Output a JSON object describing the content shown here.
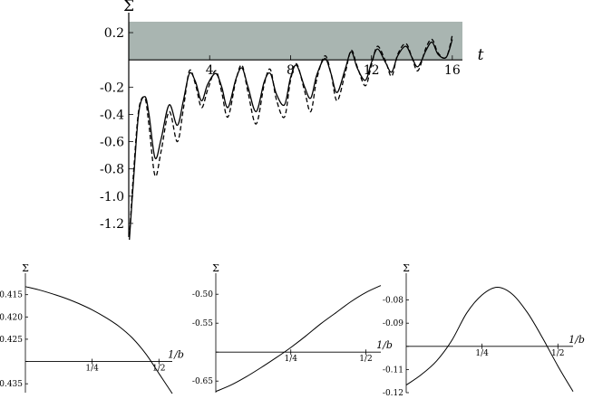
{
  "chart_data": [
    {
      "type": "line",
      "ylabel": "Σ",
      "xlabel": "t",
      "xlim": [
        0,
        16.5
      ],
      "ylim": [
        -1.3,
        0.28
      ],
      "x_ticks": [
        4,
        8,
        12,
        16
      ],
      "x_tick_labels": [
        "4",
        "8",
        "12",
        "16"
      ],
      "y_ticks": [
        0.2,
        -0.2,
        -0.4,
        -0.6,
        -0.8,
        -1.0,
        -1.2
      ],
      "y_tick_labels": [
        "0.2",
        "-0.2",
        "-0.4",
        "-0.6",
        "-0.8",
        "-1.0",
        "-1.2"
      ],
      "shaded_region": {
        "y_from": 0,
        "y_to": 0.28,
        "color": "#a9b5b1"
      },
      "series": [
        {
          "style": "solid",
          "x": [
            0.03,
            0.25,
            0.5,
            0.8,
            1.0,
            1.3,
            1.6,
            2.0,
            2.4,
            2.7,
            3.0,
            3.3,
            3.6,
            3.9,
            4.3,
            4.6,
            4.9,
            5.3,
            5.6,
            5.9,
            6.3,
            6.7,
            7.0,
            7.3,
            7.7,
            8.0,
            8.3,
            8.7,
            9.0,
            9.3,
            9.7,
            10.0,
            10.3,
            10.7,
            11.0,
            11.3,
            11.7,
            12.0,
            12.3,
            12.7,
            13.0,
            13.3,
            13.7,
            14.0,
            14.3,
            14.7,
            15.0,
            15.3,
            15.7,
            16.0
          ],
          "y": [
            -1.32,
            -0.85,
            -0.38,
            -0.27,
            -0.4,
            -0.72,
            -0.58,
            -0.33,
            -0.48,
            -0.3,
            -0.1,
            -0.16,
            -0.3,
            -0.18,
            -0.1,
            -0.2,
            -0.35,
            -0.14,
            -0.06,
            -0.2,
            -0.38,
            -0.16,
            -0.1,
            -0.25,
            -0.33,
            -0.13,
            -0.04,
            -0.2,
            -0.28,
            -0.11,
            0.01,
            -0.1,
            -0.24,
            -0.07,
            0.06,
            -0.06,
            -0.15,
            -0.02,
            0.08,
            -0.02,
            -0.09,
            0.03,
            0.1,
            0.02,
            -0.05,
            0.07,
            0.13,
            0.04,
            0.02,
            0.15
          ]
        },
        {
          "style": "dashed",
          "x": [
            0.03,
            0.25,
            0.5,
            0.8,
            1.0,
            1.3,
            1.6,
            2.0,
            2.4,
            2.7,
            3.0,
            3.3,
            3.6,
            3.9,
            4.3,
            4.6,
            4.9,
            5.3,
            5.6,
            5.9,
            6.3,
            6.7,
            7.0,
            7.3,
            7.7,
            8.0,
            8.3,
            8.7,
            9.0,
            9.3,
            9.7,
            10.0,
            10.3,
            10.7,
            11.0,
            11.3,
            11.7,
            12.0,
            12.3,
            12.7,
            13.0,
            13.3,
            13.7,
            14.0,
            14.3,
            14.7,
            15.0,
            15.3,
            15.7,
            16.0
          ],
          "y": [
            -1.3,
            -0.8,
            -0.36,
            -0.28,
            -0.48,
            -0.85,
            -0.67,
            -0.38,
            -0.6,
            -0.36,
            -0.08,
            -0.18,
            -0.35,
            -0.22,
            -0.08,
            -0.24,
            -0.42,
            -0.15,
            -0.04,
            -0.24,
            -0.47,
            -0.18,
            -0.07,
            -0.29,
            -0.42,
            -0.15,
            -0.03,
            -0.23,
            -0.38,
            -0.14,
            0.03,
            -0.1,
            -0.3,
            -0.1,
            0.07,
            -0.05,
            -0.19,
            -0.04,
            0.1,
            -0.01,
            -0.12,
            0.04,
            0.12,
            0.02,
            -0.08,
            0.09,
            0.15,
            0.05,
            0.02,
            0.18
          ]
        }
      ]
    },
    {
      "type": "line",
      "ylabel": "Σ",
      "xlabel": "1/b",
      "xlim": [
        0,
        0.55
      ],
      "ylim": [
        -0.437,
        -0.411
      ],
      "x_ticks": [
        0.25,
        0.5
      ],
      "x_tick_labels": [
        "1/4",
        "1/2"
      ],
      "y_ticks": [
        -0.415,
        -0.42,
        -0.425,
        -0.43,
        -0.435
      ],
      "y_tick_labels": [
        "-0.415",
        "-0.420",
        "-0.425",
        "",
        "-0.435"
      ],
      "axis_y": -0.43,
      "series": [
        {
          "style": "solid",
          "x": [
            0.0,
            0.05,
            0.1,
            0.15,
            0.2,
            0.25,
            0.3,
            0.35,
            0.4,
            0.45,
            0.5,
            0.55
          ],
          "y": [
            -0.4132,
            -0.4139,
            -0.4148,
            -0.4158,
            -0.417,
            -0.4184,
            -0.4201,
            -0.4221,
            -0.4247,
            -0.4282,
            -0.4327,
            -0.4372
          ]
        }
      ]
    },
    {
      "type": "line",
      "ylabel": "Σ",
      "xlabel": "1/b",
      "xlim": [
        0,
        0.55
      ],
      "ylim": [
        -0.67,
        -0.47
      ],
      "x_ticks": [
        0.25,
        0.5
      ],
      "x_tick_labels": [
        "1/4",
        "1/2"
      ],
      "y_ticks": [
        -0.5,
        -0.55,
        -0.6,
        -0.65
      ],
      "y_tick_labels": [
        "-0.50",
        "-0.55",
        "",
        "-0.65"
      ],
      "axis_y": -0.6,
      "series": [
        {
          "style": "solid",
          "x": [
            0.0,
            0.05,
            0.1,
            0.15,
            0.2,
            0.25,
            0.3,
            0.35,
            0.4,
            0.45,
            0.5,
            0.55
          ],
          "y": [
            -0.668,
            -0.657,
            -0.643,
            -0.627,
            -0.61,
            -0.592,
            -0.572,
            -0.551,
            -0.532,
            -0.513,
            -0.497,
            -0.485
          ]
        }
      ]
    },
    {
      "type": "line",
      "ylabel": "Σ",
      "xlabel": "1/b",
      "xlim": [
        0,
        0.55
      ],
      "ylim": [
        -0.12,
        -0.07
      ],
      "x_ticks": [
        0.25,
        0.5
      ],
      "x_tick_labels": [
        "1/4",
        "1/2"
      ],
      "y_ticks": [
        -0.08,
        -0.09,
        -0.1,
        -0.11,
        -0.12
      ],
      "y_tick_labels": [
        "-0.08",
        "-0.09",
        "",
        "-0.11",
        "-0.12"
      ],
      "axis_y": -0.1,
      "series": [
        {
          "style": "solid",
          "x": [
            0.0,
            0.05,
            0.1,
            0.15,
            0.2,
            0.25,
            0.3,
            0.35,
            0.4,
            0.45,
            0.5,
            0.55
          ],
          "y": [
            -0.1167,
            -0.1122,
            -0.1063,
            -0.0975,
            -0.0855,
            -0.0778,
            -0.0745,
            -0.0775,
            -0.0855,
            -0.0965,
            -0.1085,
            -0.1195
          ]
        }
      ]
    }
  ]
}
